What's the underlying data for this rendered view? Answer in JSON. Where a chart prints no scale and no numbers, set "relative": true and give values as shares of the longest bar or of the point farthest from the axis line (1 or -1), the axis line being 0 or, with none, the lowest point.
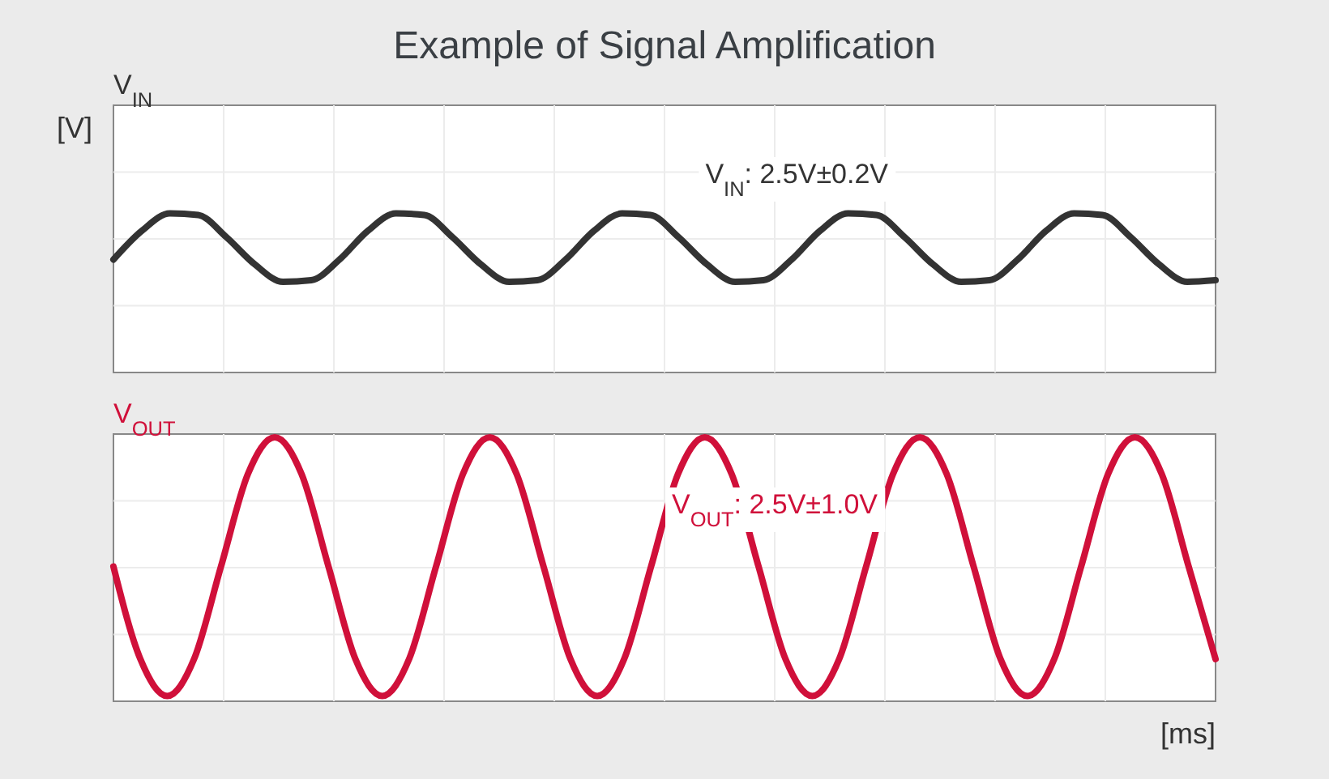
{
  "chart_data": [
    {
      "type": "line",
      "title": "Example of Signal Amplification",
      "subtitle": "V$_{IN}$",
      "ylabel": "[V]",
      "relative": true,
      "grid": true,
      "categories": [
        null,
        null,
        null,
        null,
        null,
        null,
        null,
        null,
        null,
        null,
        null,
        null,
        null,
        null,
        null,
        null,
        null,
        null,
        null,
        null,
        null,
        null,
        null,
        null,
        null,
        null,
        null,
        null,
        null,
        null,
        null,
        null,
        null,
        null,
        null,
        null,
        null,
        null,
        null,
        null
      ],
      "series": [
        {
          "color": "#333333",
          "values": [
            0.71,
            0.89,
            1.0,
            0.99,
            0.85,
            0.68,
            0.57,
            0.58,
            0.71,
            0.89,
            1.0,
            0.99,
            0.85,
            0.68,
            0.57,
            0.58,
            0.71,
            0.89,
            1.0,
            0.99,
            0.85,
            0.68,
            0.57,
            0.58,
            0.71,
            0.89,
            1.0,
            0.99,
            0.85,
            0.68,
            0.57,
            0.58,
            0.71,
            0.89,
            1.0,
            0.99,
            0.85,
            0.68,
            0.57,
            0.58
          ]
        }
      ],
      "annotations": [
        "V$_{IN}$: 2.5V±0.2V"
      ]
    },
    {
      "type": "line",
      "title": "V$_{OUT}$",
      "xlabel": "[ms]",
      "relative": true,
      "grid": true,
      "categories": [
        null,
        null,
        null,
        null,
        null,
        null,
        null,
        null,
        null,
        null,
        null,
        null,
        null,
        null,
        null,
        null,
        null,
        null,
        null,
        null,
        null,
        null,
        null,
        null,
        null,
        null,
        null,
        null,
        null,
        null,
        null,
        null,
        null,
        null,
        null,
        null,
        null,
        null,
        null,
        null,
        null,
        null
      ],
      "series": [
        {
          "color": "#d0103a",
          "values": [
            0.51,
            0.16,
            0.02,
            0.16,
            0.51,
            0.86,
            1.0,
            0.86,
            0.51,
            0.16,
            0.02,
            0.16,
            0.51,
            0.86,
            1.0,
            0.86,
            0.51,
            0.16,
            0.02,
            0.16,
            0.51,
            0.86,
            1.0,
            0.86,
            0.51,
            0.16,
            0.02,
            0.16,
            0.51,
            0.86,
            1.0,
            0.86,
            0.51,
            0.16,
            0.02,
            0.16,
            0.51,
            0.86,
            1.0,
            0.86,
            0.51,
            0.16
          ]
        }
      ],
      "annotations": [
        "V$_{OUT}$: 2.5V±1.0V"
      ]
    }
  ]
}
